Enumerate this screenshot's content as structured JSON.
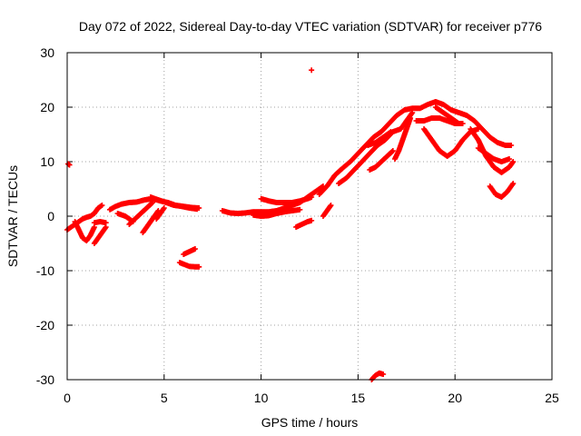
{
  "chart_data": {
    "type": "scatter",
    "title": "Day 072 of 2022, Sidereal Day-to-day VTEC variation (SDTVAR) for receiver p776",
    "xlabel": "GPS time / hours",
    "ylabel": "SDTVAR / TECUs",
    "xlim": [
      0,
      25
    ],
    "ylim": [
      -30,
      30
    ],
    "xticks": [
      0,
      5,
      10,
      15,
      20,
      25
    ],
    "yticks": [
      -30,
      -20,
      -10,
      0,
      10,
      20,
      30
    ],
    "xtick_labels": [
      "0",
      "5",
      "10",
      "15",
      "20",
      "25"
    ],
    "ytick_labels": [
      "-30",
      "-20",
      "-10",
      "0",
      "10",
      "20",
      "30"
    ],
    "grid": true,
    "marker": "plus",
    "color": "#ff0000",
    "series": [
      {
        "values": [
          [
            0.05,
            9.6
          ],
          [
            0.12,
            9.4
          ]
        ]
      },
      {
        "values": [
          [
            0.0,
            -2.5
          ],
          [
            0.2,
            -2.0
          ],
          [
            0.4,
            -1.5
          ],
          [
            0.6,
            -1.0
          ],
          [
            0.8,
            -0.5
          ],
          [
            1.0,
            -0.2
          ],
          [
            1.2,
            0.0
          ],
          [
            1.4,
            0.5
          ],
          [
            1.6,
            1.5
          ],
          [
            1.8,
            2.0
          ]
        ]
      },
      {
        "values": [
          [
            0.4,
            -1.0
          ],
          [
            0.6,
            -2.5
          ],
          [
            0.8,
            -4.0
          ],
          [
            1.0,
            -4.5
          ],
          [
            1.2,
            -3.5
          ],
          [
            1.4,
            -2.0
          ]
        ]
      },
      {
        "values": [
          [
            1.4,
            -5.0
          ],
          [
            1.6,
            -4.0
          ],
          [
            1.8,
            -3.0
          ],
          [
            2.0,
            -2.0
          ]
        ]
      },
      {
        "values": [
          [
            1.4,
            -1.2
          ],
          [
            1.7,
            -1.0
          ],
          [
            2.0,
            -1.2
          ]
        ]
      },
      {
        "values": [
          [
            2.2,
            1.2
          ],
          [
            2.5,
            1.8
          ],
          [
            2.8,
            2.2
          ],
          [
            3.2,
            2.5
          ],
          [
            3.6,
            2.6
          ],
          [
            4.0,
            3.0
          ],
          [
            4.4,
            3.2
          ],
          [
            4.8,
            2.8
          ],
          [
            5.2,
            2.5
          ],
          [
            5.6,
            2.0
          ],
          [
            6.0,
            1.8
          ],
          [
            6.4,
            1.6
          ],
          [
            6.8,
            1.5
          ]
        ]
      },
      {
        "values": [
          [
            2.6,
            0.5
          ],
          [
            3.0,
            0.0
          ],
          [
            3.4,
            -1.0
          ]
        ]
      },
      {
        "values": [
          [
            3.2,
            -1.5
          ],
          [
            3.5,
            -0.5
          ],
          [
            3.8,
            0.5
          ],
          [
            4.1,
            1.5
          ],
          [
            4.4,
            2.5
          ]
        ]
      },
      {
        "values": [
          [
            3.9,
            -3.0
          ],
          [
            4.1,
            -2.0
          ],
          [
            4.3,
            -1.0
          ],
          [
            4.5,
            0.0
          ],
          [
            4.7,
            1.0
          ]
        ]
      },
      {
        "values": [
          [
            4.6,
            -0.5
          ],
          [
            4.8,
            0.5
          ],
          [
            5.0,
            1.5
          ]
        ]
      },
      {
        "values": [
          [
            4.3,
            3.5
          ],
          [
            4.7,
            3.0
          ],
          [
            5.1,
            2.5
          ],
          [
            5.5,
            2.0
          ],
          [
            5.9,
            1.8
          ],
          [
            6.3,
            1.5
          ],
          [
            6.7,
            1.3
          ]
        ]
      },
      {
        "values": [
          [
            6.0,
            -7.0
          ],
          [
            6.3,
            -6.5
          ],
          [
            6.6,
            -6.0
          ]
        ]
      },
      {
        "values": [
          [
            5.8,
            -8.5
          ],
          [
            6.0,
            -8.8
          ],
          [
            6.3,
            -9.2
          ],
          [
            6.6,
            -9.3
          ],
          [
            6.8,
            -9.3
          ]
        ]
      },
      {
        "values": [
          [
            8.0,
            1.0
          ],
          [
            8.4,
            0.6
          ],
          [
            8.8,
            0.5
          ],
          [
            9.2,
            0.6
          ],
          [
            9.6,
            0.8
          ],
          [
            10.0,
            0.8
          ],
          [
            10.4,
            0.8
          ],
          [
            10.8,
            1.0
          ],
          [
            11.2,
            1.5
          ],
          [
            11.6,
            2.0
          ],
          [
            12.0,
            2.5
          ],
          [
            12.4,
            3.5
          ],
          [
            12.8,
            4.5
          ],
          [
            13.2,
            5.5
          ]
        ]
      },
      {
        "values": [
          [
            9.6,
            0.2
          ],
          [
            10.0,
            0.0
          ],
          [
            10.4,
            0.1
          ],
          [
            10.8,
            0.5
          ],
          [
            11.2,
            0.8
          ],
          [
            11.6,
            1.0
          ],
          [
            12.0,
            1.2
          ]
        ]
      },
      {
        "values": [
          [
            10.0,
            3.2
          ],
          [
            10.4,
            2.8
          ],
          [
            10.8,
            2.5
          ],
          [
            11.2,
            2.5
          ],
          [
            11.6,
            2.5
          ],
          [
            12.0,
            2.8
          ],
          [
            12.4,
            3.2
          ],
          [
            12.6,
            3.5
          ]
        ]
      },
      {
        "values": [
          [
            11.8,
            -2.0
          ],
          [
            12.1,
            -1.5
          ],
          [
            12.4,
            -1.0
          ],
          [
            12.6,
            -0.8
          ]
        ]
      },
      {
        "values": [
          [
            12.6,
            26.8
          ]
        ]
      },
      {
        "values": [
          [
            13.2,
            0.0
          ],
          [
            13.4,
            1.0
          ],
          [
            13.6,
            2.0
          ]
        ]
      },
      {
        "values": [
          [
            13.0,
            4.0
          ],
          [
            13.4,
            5.5
          ],
          [
            13.8,
            7.5
          ],
          [
            14.2,
            8.8
          ],
          [
            14.6,
            10.0
          ],
          [
            15.0,
            11.5
          ],
          [
            15.4,
            13.0
          ],
          [
            15.8,
            14.5
          ],
          [
            16.2,
            15.5
          ],
          [
            16.6,
            17.0
          ],
          [
            17.0,
            18.5
          ],
          [
            17.4,
            19.5
          ],
          [
            17.8,
            19.8
          ],
          [
            18.2,
            19.8
          ],
          [
            18.6,
            20.5
          ],
          [
            19.0,
            21.0
          ],
          [
            19.4,
            20.5
          ],
          [
            19.8,
            19.5
          ],
          [
            20.2,
            19.0
          ],
          [
            20.6,
            18.5
          ],
          [
            21.0,
            17.5
          ],
          [
            21.4,
            16.0
          ],
          [
            21.8,
            14.5
          ],
          [
            22.2,
            13.5
          ],
          [
            22.6,
            13.0
          ],
          [
            22.9,
            13.0
          ]
        ]
      },
      {
        "values": [
          [
            14.0,
            6.0
          ],
          [
            14.4,
            7.0
          ],
          [
            14.8,
            8.5
          ],
          [
            15.2,
            10.0
          ],
          [
            15.6,
            11.5
          ],
          [
            16.0,
            13.0
          ],
          [
            16.4,
            14.0
          ],
          [
            16.8,
            15.5
          ],
          [
            17.2,
            16.0
          ]
        ]
      },
      {
        "values": [
          [
            15.5,
            13.0
          ],
          [
            15.9,
            13.5
          ],
          [
            16.3,
            14.5
          ],
          [
            16.7,
            15.5
          ]
        ]
      },
      {
        "values": [
          [
            15.6,
            8.5
          ],
          [
            15.9,
            9.0
          ],
          [
            16.2,
            10.0
          ],
          [
            16.5,
            11.0
          ],
          [
            16.8,
            12.0
          ]
        ]
      },
      {
        "values": [
          [
            16.9,
            10.5
          ],
          [
            17.1,
            12.0
          ],
          [
            17.3,
            14.0
          ],
          [
            17.5,
            16.0
          ],
          [
            17.7,
            18.0
          ]
        ]
      },
      {
        "values": [
          [
            17.2,
            16.0
          ],
          [
            17.5,
            17.5
          ],
          [
            17.8,
            19.0
          ]
        ]
      },
      {
        "values": [
          [
            18.0,
            17.5
          ],
          [
            18.4,
            17.5
          ],
          [
            18.8,
            18.0
          ],
          [
            19.2,
            18.0
          ],
          [
            19.6,
            17.5
          ],
          [
            20.0,
            17.0
          ],
          [
            20.4,
            17.0
          ]
        ]
      },
      {
        "values": [
          [
            18.4,
            16.0
          ],
          [
            18.8,
            14.0
          ],
          [
            19.2,
            12.0
          ],
          [
            19.6,
            11.0
          ],
          [
            20.0,
            12.0
          ],
          [
            20.4,
            14.0
          ],
          [
            20.8,
            15.5
          ],
          [
            21.2,
            16.0
          ]
        ]
      },
      {
        "values": [
          [
            19.0,
            20.0
          ],
          [
            19.4,
            19.0
          ],
          [
            19.8,
            18.0
          ],
          [
            20.2,
            17.0
          ]
        ]
      },
      {
        "values": [
          [
            20.8,
            16.0
          ],
          [
            21.2,
            14.0
          ],
          [
            21.6,
            11.0
          ],
          [
            22.0,
            9.0
          ],
          [
            22.4,
            8.0
          ],
          [
            22.8,
            9.0
          ],
          [
            23.0,
            10.0
          ]
        ]
      },
      {
        "values": [
          [
            21.2,
            12.5
          ],
          [
            21.6,
            11.5
          ],
          [
            22.0,
            10.5
          ],
          [
            22.4,
            10.0
          ],
          [
            22.8,
            10.5
          ]
        ]
      },
      {
        "values": [
          [
            21.8,
            5.5
          ],
          [
            22.1,
            4.0
          ],
          [
            22.4,
            3.5
          ],
          [
            22.7,
            4.5
          ],
          [
            23.0,
            6.0
          ]
        ]
      },
      {
        "values": [
          [
            15.7,
            -30.0
          ],
          [
            15.9,
            -29.2
          ],
          [
            16.1,
            -28.8
          ],
          [
            16.3,
            -29.0
          ]
        ]
      }
    ]
  }
}
